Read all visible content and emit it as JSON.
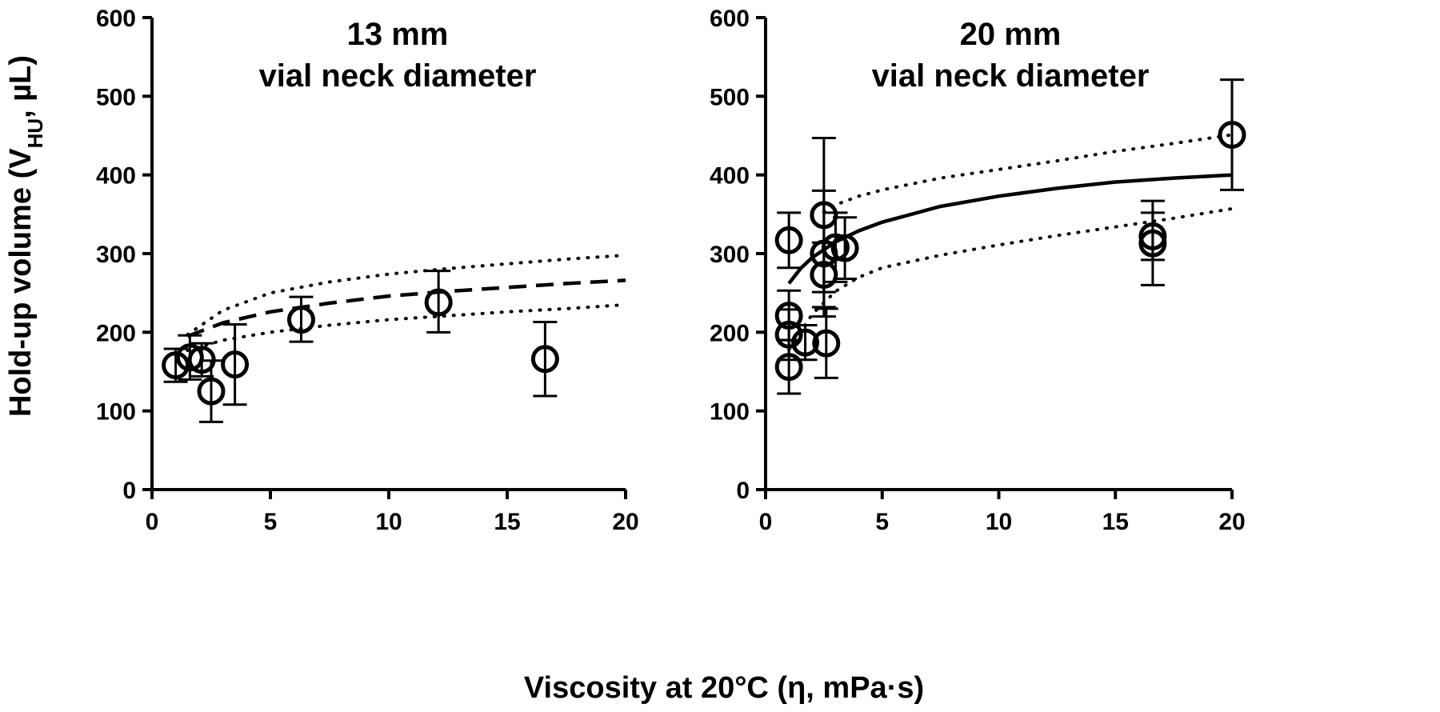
{
  "figure": {
    "ylabel_main": "Hold-up volume (V",
    "ylabel_sub": "HU",
    "ylabel_end": ", µL)",
    "xlabel": "Viscosity at 20°C (η, mPa·s)"
  },
  "chart_data": [
    {
      "type": "scatter",
      "title_line1": "13 mm",
      "title_line2": "vial neck diameter",
      "xlim": [
        0,
        20
      ],
      "ylim": [
        0,
        600
      ],
      "xticks": [
        "0",
        "5",
        "10",
        "15",
        "20"
      ],
      "yticks": [
        "0",
        "100",
        "200",
        "300",
        "400",
        "500",
        "600"
      ],
      "grid": false,
      "points": [
        {
          "x": 1.0,
          "y": 158,
          "lo": 137,
          "hi": 179
        },
        {
          "x": 1.6,
          "y": 168,
          "lo": 140,
          "hi": 196
        },
        {
          "x": 2.1,
          "y": 165,
          "lo": 144,
          "hi": 186
        },
        {
          "x": 2.5,
          "y": 125,
          "lo": 86,
          "hi": 164
        },
        {
          "x": 3.5,
          "y": 159,
          "lo": 108,
          "hi": 210
        },
        {
          "x": 6.3,
          "y": 216,
          "lo": 188,
          "hi": 245
        },
        {
          "x": 12.1,
          "y": 238,
          "lo": 200,
          "hi": 278
        },
        {
          "x": 16.6,
          "y": 166,
          "lo": 119,
          "hi": 213
        }
      ],
      "fit": {
        "style": "dashed",
        "x": [
          1.5,
          3,
          5,
          7.5,
          10,
          12.5,
          15,
          17.5,
          20
        ],
        "y": [
          195,
          212,
          226,
          237,
          246,
          252,
          257,
          262,
          266
        ]
      },
      "band_upper": {
        "x": [
          1.5,
          3,
          5,
          7.5,
          10,
          12.5,
          15,
          17.5,
          20
        ],
        "y": [
          197,
          228,
          250,
          264,
          274,
          281,
          287,
          293,
          298
        ]
      },
      "band_lower": {
        "x": [
          1.5,
          3,
          5,
          7.5,
          10,
          12.5,
          15,
          17.5,
          20
        ],
        "y": [
          177,
          190,
          200,
          209,
          216,
          221,
          226,
          230,
          235
        ]
      }
    },
    {
      "type": "scatter",
      "title_line1": "20 mm",
      "title_line2": "vial neck diameter",
      "xlim": [
        0,
        20
      ],
      "ylim": [
        0,
        600
      ],
      "xticks": [
        "0",
        "5",
        "10",
        "15",
        "20"
      ],
      "yticks": [
        "0",
        "100",
        "200",
        "300",
        "400",
        "500",
        "600"
      ],
      "grid": false,
      "points": [
        {
          "x": 1.0,
          "y": 317,
          "lo": 282,
          "hi": 352
        },
        {
          "x": 1.0,
          "y": 221,
          "lo": 190,
          "hi": 253
        },
        {
          "x": 1.0,
          "y": 197,
          "lo": 165,
          "hi": 229
        },
        {
          "x": 1.0,
          "y": 156,
          "lo": 122,
          "hi": 190
        },
        {
          "x": 1.7,
          "y": 187,
          "lo": 165,
          "hi": 209
        },
        {
          "x": 2.5,
          "y": 349,
          "lo": 251,
          "hi": 447
        },
        {
          "x": 2.5,
          "y": 300,
          "lo": 220,
          "hi": 380
        },
        {
          "x": 2.5,
          "y": 273,
          "lo": 232,
          "hi": 314
        },
        {
          "x": 2.6,
          "y": 186,
          "lo": 142,
          "hi": 230
        },
        {
          "x": 3.0,
          "y": 308,
          "lo": 264,
          "hi": 352
        },
        {
          "x": 3.4,
          "y": 307,
          "lo": 268,
          "hi": 346
        },
        {
          "x": 16.6,
          "y": 322,
          "lo": 292,
          "hi": 352
        },
        {
          "x": 16.6,
          "y": 313,
          "lo": 260,
          "hi": 367
        },
        {
          "x": 20.0,
          "y": 451,
          "lo": 381,
          "hi": 521
        }
      ],
      "fit": {
        "style": "solid",
        "x": [
          1,
          1.5,
          2,
          3,
          4,
          5,
          7.5,
          10,
          12.5,
          15,
          17.5,
          20
        ],
        "y": [
          262,
          281,
          295,
          315,
          329,
          340,
          360,
          373,
          383,
          391,
          396,
          400
        ]
      },
      "band_upper": {
        "x": [
          2.5,
          3,
          4,
          5,
          7.5,
          10,
          12.5,
          15,
          17.5,
          20
        ],
        "y": [
          353,
          362,
          373,
          381,
          396,
          407,
          418,
          430,
          440,
          451
        ]
      },
      "band_lower": {
        "x": [
          1,
          2,
          3,
          4,
          5,
          7.5,
          10,
          12.5,
          15,
          17.5,
          20
        ],
        "y": [
          178,
          223,
          252,
          270,
          282,
          298,
          311,
          323,
          334,
          345,
          357
        ]
      }
    }
  ]
}
